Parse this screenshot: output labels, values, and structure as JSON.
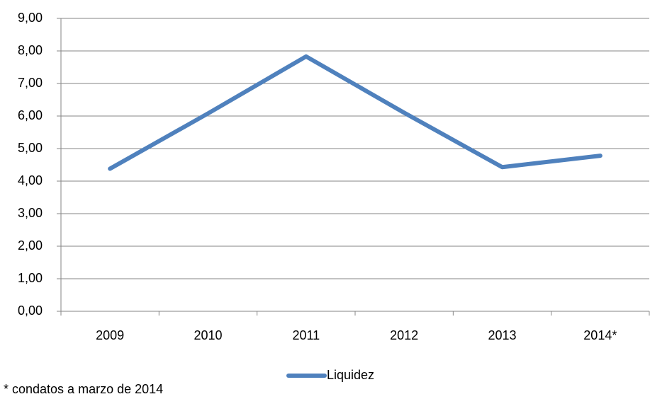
{
  "chart_data": {
    "type": "line",
    "categories": [
      "2009",
      "2010",
      "2011",
      "2012",
      "2013",
      "2014*"
    ],
    "series": [
      {
        "name": "Liquidez",
        "color": "#4f81bd",
        "values": [
          4.38,
          6.08,
          7.83,
          6.1,
          4.43,
          4.78
        ]
      }
    ],
    "ylim": [
      0,
      9
    ],
    "yticks": [
      {
        "value": 0,
        "label": "0,00"
      },
      {
        "value": 1,
        "label": "1,00"
      },
      {
        "value": 2,
        "label": "2,00"
      },
      {
        "value": 3,
        "label": "3,00"
      },
      {
        "value": 4,
        "label": "4,00"
      },
      {
        "value": 5,
        "label": "5,00"
      },
      {
        "value": 6,
        "label": "6,00"
      },
      {
        "value": 7,
        "label": "7,00"
      },
      {
        "value": 8,
        "label": "8,00"
      },
      {
        "value": 9,
        "label": "9,00"
      }
    ],
    "grid": true,
    "legend": "bottom",
    "note": "* condatos a marzo de 2014"
  }
}
